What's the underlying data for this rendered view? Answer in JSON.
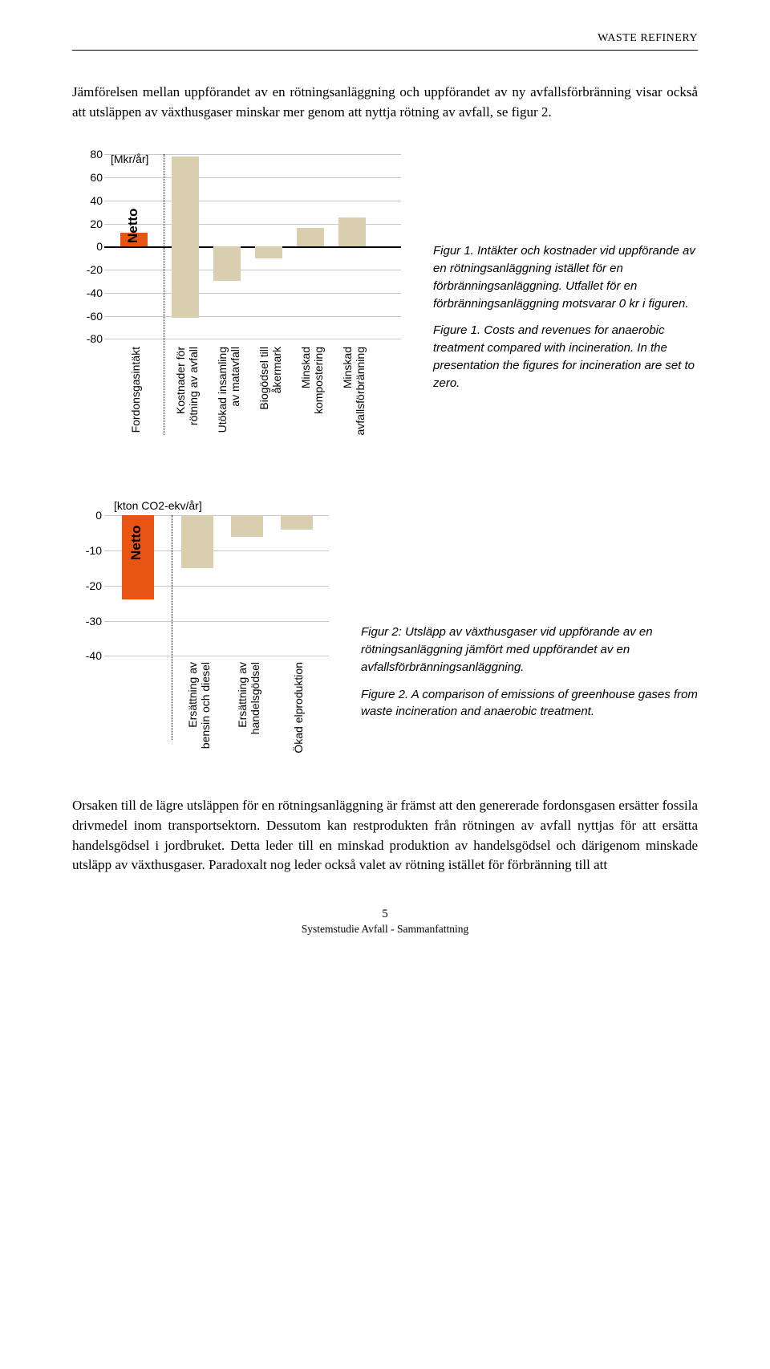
{
  "header": "WASTE REFINERY",
  "intro": "Jämförelsen mellan uppförandet av en rötningsanläggning och uppförandet av ny avfallsförbränning visar också att utsläppen av växthusgaser minskar mer genom att nyttja rötning av avfall, se figur 2.",
  "chart1": {
    "unit": "[Mkr/år]",
    "ylim": [
      -80,
      80
    ],
    "ytick_step": 20,
    "grid_color": "#c8c8c8",
    "netto_label": "Netto",
    "split_after": 1,
    "bars": [
      {
        "label": "Fordonsgasintäkt",
        "value": 12,
        "color": "#e85412"
      },
      {
        "label": "Kostnader för\nrötning av avfall",
        "value_top": 78,
        "value_bottom": -62,
        "color": "#d9ceae"
      },
      {
        "label": "Utökad insamling\nav matavfall",
        "value": -30,
        "color": "#d9ceae"
      },
      {
        "label": "Biogödsel till\nåkermark",
        "value": -10,
        "color": "#d9ceae"
      },
      {
        "label": "Minskad\nkompostering",
        "value": 16,
        "color": "#d9ceae"
      },
      {
        "label": "Minskad\navfallsförbränning",
        "value": 25,
        "color": "#d9ceae"
      }
    ]
  },
  "caption1a": "Figur 1. Intäkter och kostnader vid uppförande av en rötningsanläggning istället för en förbränningsanläggning. Utfallet för en förbränningsanläggning motsvarar 0 kr i figuren.",
  "caption1b": "Figure 1. Costs and revenues for anaerobic treatment compared with incineration. In the presentation the figures for incineration are set to zero.",
  "chart2": {
    "unit": "[kton CO2-ekv/år]",
    "ylim": [
      -40,
      0
    ],
    "ytick_step": 10,
    "grid_color": "#c8c8c8",
    "netto_label": "Netto",
    "split_after": 1,
    "bars": [
      {
        "label": "",
        "value": -24,
        "color": "#e85412"
      },
      {
        "label": "Ersättning av\nbensin och diesel",
        "value": -15,
        "color": "#d9ceae"
      },
      {
        "label": "Ersättning av\nhandelsgödsel",
        "value": -6,
        "color": "#d9ceae"
      },
      {
        "label": "Ökad elproduktion",
        "value": -4,
        "color": "#d9ceae"
      }
    ]
  },
  "caption2a": "Figur 2: Utsläpp av växthusgaser vid uppförande av en rötningsanläggning jämfört med uppförandet av en avfallsförbränningsanläggning.",
  "caption2b": "Figure 2. A comparison of emissions of greenhouse gases from waste incineration and anaerobic treatment.",
  "outro": "Orsaken till de lägre utsläppen för en rötningsanläggning är främst att den genererade fordonsgasen ersätter fossila drivmedel inom transportsektorn. Dessutom kan restprodukten från rötningen av avfall nyttjas för att ersätta handelsgödsel i jordbruket. Detta leder till en minskad produktion av handelsgödsel och därigenom minskade utsläpp av växthusgaser. Paradoxalt nog leder också valet av rötning istället för förbränning till att",
  "footer_page": "5",
  "footer_text": "Systemstudie Avfall - Sammanfattning"
}
